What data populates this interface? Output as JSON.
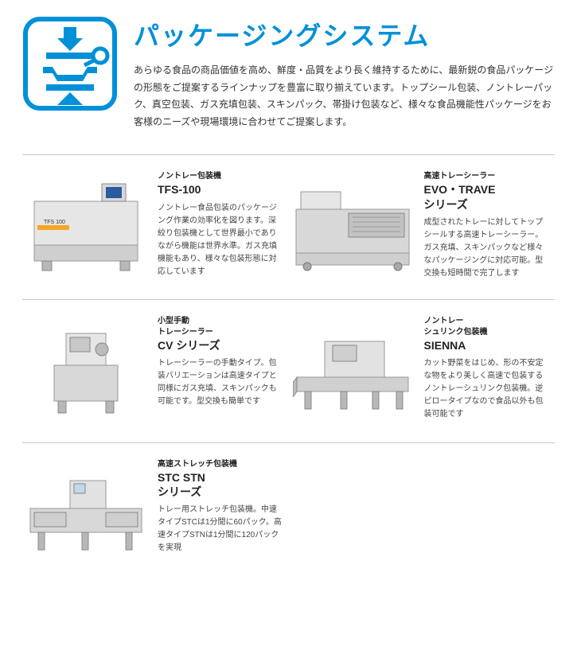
{
  "header": {
    "title": "パッケージングシステム",
    "description": "あらゆる食品の商品価値を高め、鮮度・品質をより長く維持するために、最新鋭の食品パッケージの形態をご提案するラインナップを豊富に取り揃えています。トップシール包装、ノントレーパック、真空包装、ガス充填包装、スキンパック、帯掛け包装など、様々な食品機能性パッケージをお客様のニーズや現場環境に合わせてご提案します。",
    "icon_color": "#0090d8",
    "icon_bg": "#ffffff"
  },
  "products": [
    {
      "subtitle": "ノントレー包装機",
      "title": "TFS-100",
      "description": "ノントレー食品包装のパッケージング作業の効率化を図ります。深絞り包装機として世界最小でありながら機能は世界水準。ガス充填機能もあり、様々な包装形態に対応しています"
    },
    {
      "subtitle": "高速トレーシーラー",
      "title": "EVO・TRAVE\nシリーズ",
      "description": "成型されたトレーに対してトップシールする高速トレーシーラー。ガス充填、スキンパックなど様々なパッケージングに対応可能。型交換も短時間で完了します"
    },
    {
      "subtitle": "小型手動\nトレーシーラー",
      "title": "CV シリーズ",
      "description": "トレーシーラーの手動タイプ。包装バリエーションは高速タイプと同様にガス充填、スキンパックも可能です。型交換も簡単です"
    },
    {
      "subtitle": "ノントレー\nシュリンク包装機",
      "title": "SIENNA",
      "description": "カット野菜をはじめ、形の不安定な物をより美しく高速で包装するノントレーシュリンク包装機。逆ピロータイプなので食品以外も包装可能です"
    },
    {
      "subtitle": "高速ストレッチ包装機",
      "title": "STC STN\nシリーズ",
      "description": "トレー用ストレッチ包装機。中速タイプSTCは1分間に60パック。高速タイプSTNは1分間に120パックを実現"
    }
  ],
  "colors": {
    "accent": "#0090d8",
    "border": "#c8c8c8",
    "text": "#333333",
    "machine_light": "#e8e8e8",
    "machine_dark": "#bfbfbf"
  }
}
